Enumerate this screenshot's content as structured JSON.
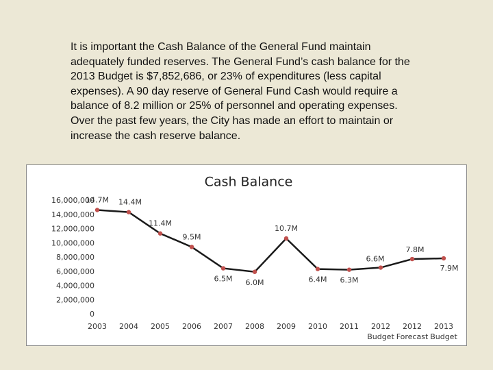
{
  "paragraph": "It is important the Cash Balance of the General Fund maintain adequately funded reserves.  The General Fund’s cash balance for the 2013 Budget is $7,852,686, or 23% of expenditures (less capital expenses).  A 90 day reserve of General Fund Cash would require a balance of 8.2 million or 25% of personnel and operating expenses.  Over the past few years, the City has made an effort to maintain or increase the cash reserve balance.",
  "chart_data": {
    "type": "line",
    "title": "Cash Balance",
    "categories": [
      "2003",
      "2004",
      "2005",
      "2006",
      "2007",
      "2008",
      "2009",
      "2010",
      "2011",
      "2012 Budget",
      "2012 Forecast",
      "2013 Budget"
    ],
    "values": [
      14700000,
      14400000,
      11400000,
      9500000,
      6500000,
      6000000,
      10700000,
      6400000,
      6300000,
      6600000,
      7800000,
      7900000
    ],
    "value_labels": [
      "14.7M",
      "14.4M",
      "11.4M",
      "9.5M",
      "6.5M",
      "6.0M",
      "10.7M",
      "6.4M",
      "6.3M",
      "6.6M",
      "7.8M",
      "7.9M"
    ],
    "color": "#1a1a1a",
    "marker_color": "#c0504d",
    "ylim": [
      0,
      16000000
    ],
    "yticks": [
      0,
      {
        "value": 2000000,
        "label": "2,000,000"
      },
      {
        "value": 4000000,
        "label": "4,000,000"
      },
      {
        "value": 6000000,
        "label": "6,000,000"
      },
      {
        "value": 8000000,
        "label": "8,000,000"
      },
      {
        "value": 10000000,
        "label": "10,000,000"
      },
      {
        "value": 12000000,
        "label": "12,000,000"
      },
      {
        "value": 14000000,
        "label": "14,000,000"
      },
      {
        "value": 16000000,
        "label": "16,000,000"
      }
    ],
    "grid": false
  }
}
